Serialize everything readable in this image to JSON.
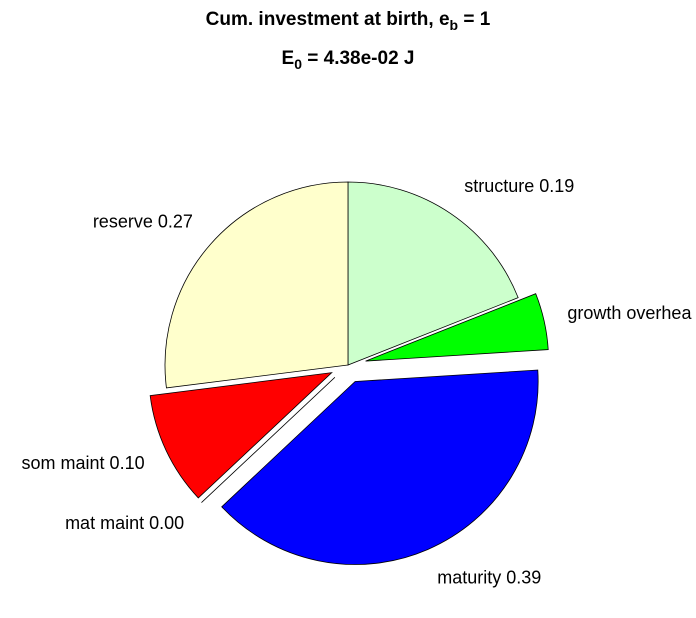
{
  "chart_data": {
    "type": "pie",
    "title": {
      "text": "Cum. investment at birth, e",
      "sub": "b",
      "after": " = 1"
    },
    "subtitle": {
      "text": "E",
      "sub": "0",
      "after": " = 4.38e-02 J"
    },
    "labels": [
      "structure 0.19",
      "growth overhea",
      "maturity 0.39",
      "mat maint 0.00",
      "som maint 0.10",
      "reserve 0.27"
    ],
    "values": [
      0.19,
      0.05,
      0.39,
      0.0,
      0.1,
      0.27
    ],
    "colors": [
      "#ccffcc",
      "#00ff00",
      "#0000ff",
      "#ffffff",
      "#ff0000",
      "#ffffcc"
    ],
    "explode": [
      false,
      true,
      true,
      true,
      true,
      false
    ]
  }
}
